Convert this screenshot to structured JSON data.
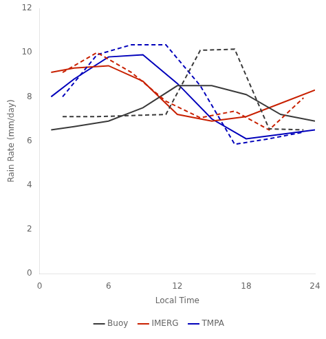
{
  "chart_data": {
    "type": "line",
    "xlabel": "Local Time",
    "ylabel": "Rain Rate (mm/day)",
    "xlim": [
      0,
      24
    ],
    "ylim": [
      0,
      12
    ],
    "xticks": [
      0,
      6,
      12,
      18,
      24
    ],
    "yticks": [
      0,
      2,
      4,
      6,
      8,
      10,
      12
    ],
    "grid": false,
    "legend": "bottom",
    "series": [
      {
        "color": "#3a3a3a",
        "line_style": "dashed",
        "x": [
          2,
          5,
          8,
          11,
          14,
          17,
          20,
          23
        ],
        "values": [
          7.1,
          7.1,
          7.15,
          7.2,
          10.1,
          10.15,
          6.55,
          6.5
        ]
      },
      {
        "color": "#c82000",
        "line_style": "dashed",
        "x": [
          2,
          5,
          8,
          11,
          14,
          17,
          20,
          23
        ],
        "values": [
          9.1,
          10.0,
          9.1,
          7.8,
          7.05,
          7.35,
          6.5,
          7.95
        ]
      },
      {
        "color": "#0000bb",
        "line_style": "dashed",
        "x": [
          2,
          5,
          8,
          11,
          14,
          17,
          20,
          23
        ],
        "values": [
          8.0,
          9.9,
          10.35,
          10.35,
          8.5,
          5.85,
          6.1,
          6.4
        ]
      },
      {
        "name": "Buoy",
        "color": "#3a3a3a",
        "line_style": "solid",
        "x": [
          1,
          3,
          6,
          9,
          12,
          15,
          18,
          21,
          24
        ],
        "values": [
          6.5,
          6.65,
          6.9,
          7.5,
          8.5,
          8.5,
          8.1,
          7.2,
          6.9
        ]
      },
      {
        "name": "IMERG",
        "color": "#c82000",
        "line_style": "solid",
        "x": [
          1,
          3,
          6,
          9,
          12,
          15,
          18,
          21,
          24
        ],
        "values": [
          9.1,
          9.3,
          9.4,
          8.7,
          7.2,
          6.9,
          7.1,
          7.7,
          8.3
        ]
      },
      {
        "name": "TMPA",
        "color": "#0000bb",
        "line_style": "solid",
        "x": [
          1,
          3,
          6,
          9,
          12,
          15,
          18,
          21,
          24
        ],
        "values": [
          8.0,
          8.8,
          9.8,
          9.9,
          8.6,
          7.0,
          6.1,
          6.3,
          6.5
        ]
      }
    ]
  }
}
